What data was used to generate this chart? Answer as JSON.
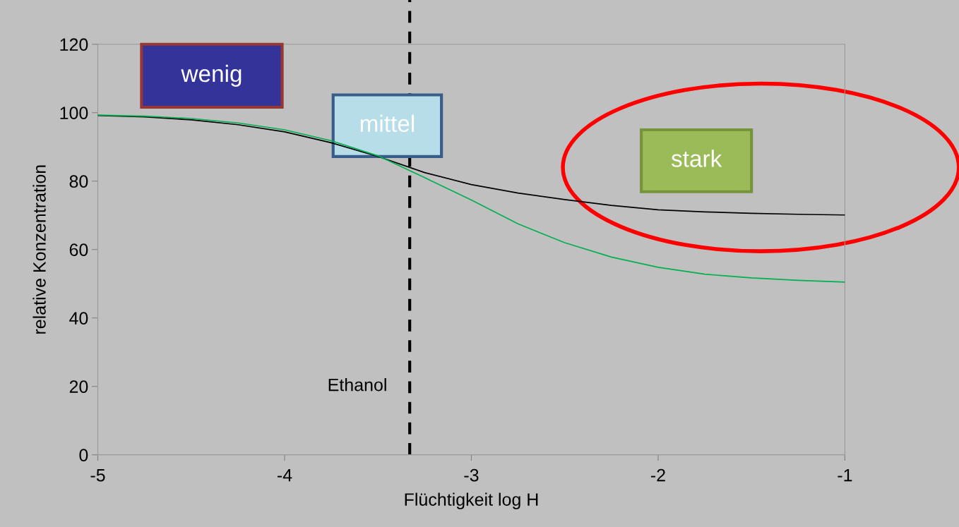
{
  "chart_data": {
    "type": "line",
    "xlabel": "Flüchtigkeit log H",
    "ylabel": "relative Konzentration",
    "x": [
      -5,
      -4.75,
      -4.5,
      -4.25,
      -4,
      -3.75,
      -3.5,
      -3.25,
      -3,
      -2.75,
      -2.5,
      -2.25,
      -2,
      -1.75,
      -1.5,
      -1.25,
      -1
    ],
    "series": [
      {
        "color": "#000000",
        "values": [
          99.2,
          98.8,
          97.9,
          96.5,
          94.4,
          91.2,
          87.2,
          82.5,
          79.0,
          76.5,
          74.6,
          72.9,
          71.6,
          71.0,
          70.6,
          70.3,
          70.1
        ]
      },
      {
        "color": "#00b050",
        "values": [
          99.3,
          99.0,
          98.3,
          97.0,
          95.0,
          91.8,
          87.4,
          81.0,
          74.5,
          67.5,
          62.0,
          57.8,
          54.8,
          52.8,
          51.7,
          51.0,
          50.5
        ]
      }
    ],
    "xlim": [
      -5,
      -1
    ],
    "xticks": [
      -5,
      -4,
      -3,
      -2,
      -1
    ],
    "ylim": [
      0,
      120
    ],
    "yticks": [
      0,
      20,
      40,
      60,
      80,
      100,
      120
    ],
    "grid": false,
    "legend": false,
    "marker": "none",
    "line_style": "solid",
    "ref_lines": [
      {
        "axis": "x",
        "value": -3.33,
        "label": "Ethanol",
        "color": "#000000",
        "line_style": "dashed"
      }
    ],
    "annotations": [
      "wenig",
      "mittel",
      "stark"
    ]
  }
}
